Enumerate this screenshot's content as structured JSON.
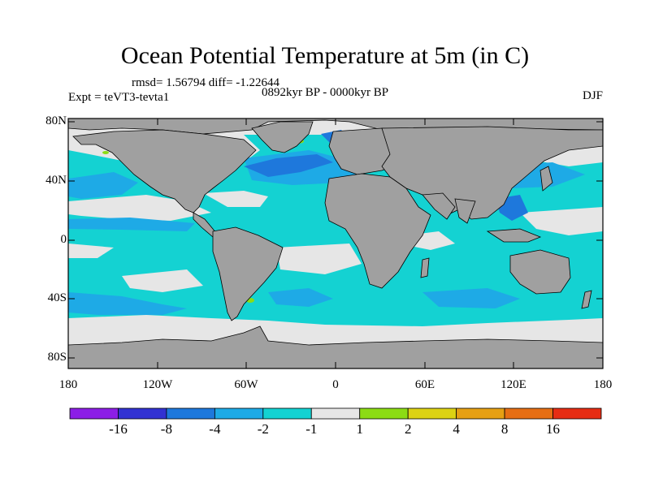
{
  "title": "Ocean Potential Temperature at 5m (in C)",
  "stats": "rmsd= 1.56794 diff= -1.22644",
  "period": "0892kyr BP - 0000kyr BP",
  "experiment": "Expt = teVT3-tevta1",
  "season": "DJF",
  "y_axis_labels": [
    "80N",
    "40N",
    "0",
    "40S",
    "80S"
  ],
  "x_axis_labels": [
    "180",
    "120W",
    "60W",
    "0",
    "60E",
    "120E",
    "180"
  ],
  "colorbar": {
    "labels": [
      "-16",
      "-8",
      "-4",
      "-2",
      "-1",
      "1",
      "2",
      "4",
      "8",
      "16"
    ],
    "colors": [
      "#8c1ee6",
      "#3232d2",
      "#1e78dc",
      "#1eaae6",
      "#14d2d2",
      "#e6e6e6",
      "#8cdc14",
      "#dcd214",
      "#e6a014",
      "#e66e14",
      "#e62d14"
    ]
  },
  "map_colors": {
    "land": "#a0a0a0",
    "neutral": "#e6e6e6",
    "cool1": "#14d2d2",
    "cool2": "#1eaae6",
    "cool4": "#1e78dc",
    "warm1": "#8cdc14"
  }
}
